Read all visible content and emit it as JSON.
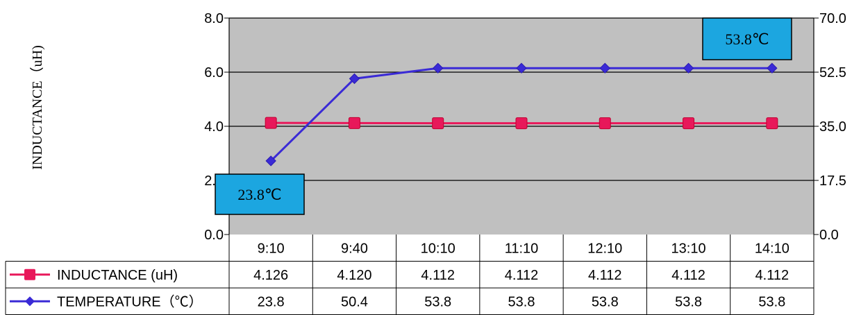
{
  "chart_data": {
    "type": "line",
    "categories": [
      "9:10",
      "9:40",
      "10:10",
      "11:10",
      "12:10",
      "13:10",
      "14:10"
    ],
    "ylabel": "INDUCTANCE（uH)",
    "y_left": {
      "range": [
        0,
        8
      ],
      "ticks": [
        "0.0",
        "2.0",
        "4.0",
        "6.0",
        "8.0"
      ]
    },
    "y_right": {
      "range": [
        0,
        70
      ],
      "ticks": [
        "0.0",
        "17.5",
        "35.0",
        "52.5",
        "70.0"
      ]
    },
    "grid": true,
    "plot_background": "#c0c0c0",
    "series": [
      {
        "name": "INDUCTANCE (uH)",
        "axis": "left",
        "color": "#e8185a",
        "marker": "square",
        "values": [
          4.126,
          4.12,
          4.112,
          4.112,
          4.112,
          4.112,
          4.112
        ],
        "labels": [
          "4.126",
          "4.120",
          "4.112",
          "4.112",
          "4.112",
          "4.112",
          "4.112"
        ]
      },
      {
        "name": "TEMPERATURE（℃）",
        "axis": "right",
        "color": "#3a2ad6",
        "marker": "diamond",
        "values": [
          23.8,
          50.4,
          53.8,
          53.8,
          53.8,
          53.8,
          53.8
        ],
        "labels": [
          "23.8",
          "50.4",
          "53.8",
          "53.8",
          "53.8",
          "53.8",
          "53.8"
        ]
      }
    ],
    "annotations": [
      {
        "text": "23.8℃",
        "color": "#1ca6e0"
      },
      {
        "text": "53.8℃",
        "color": "#1ca6e0"
      }
    ]
  }
}
